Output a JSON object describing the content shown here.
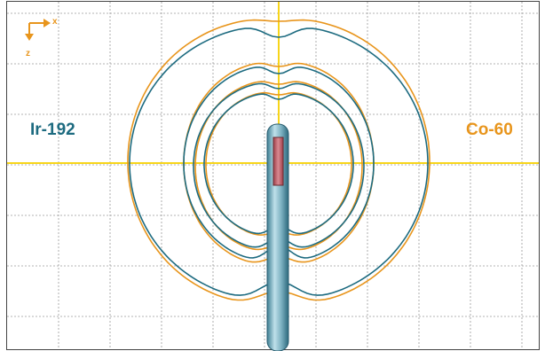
{
  "axes_indicator": {
    "x_label": "x",
    "z_label": "z"
  },
  "labels": {
    "left_source": "Ir-192",
    "right_source": "Co-60"
  },
  "colors": {
    "ir192": "#1d6b80",
    "co60": "#e8951c",
    "crosshair": "#f7d51a",
    "grid": "#9a9a9a",
    "source_core": "#c0606a"
  }
}
